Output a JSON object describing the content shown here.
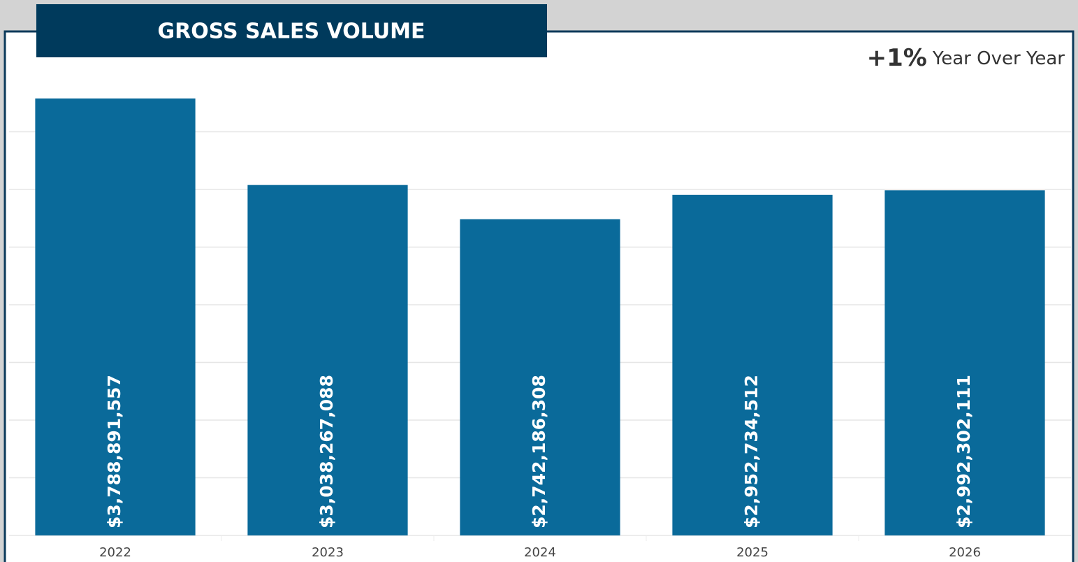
{
  "chart_data": {
    "type": "bar",
    "title": "GROSS SALES VOLUME",
    "annotation": {
      "change": "+1%",
      "label": "Year Over Year"
    },
    "categories": [
      "2022",
      "2023",
      "2024",
      "2025",
      "2026"
    ],
    "values": [
      3788891557,
      3038267088,
      2742186308,
      2952734512,
      2992302111
    ],
    "value_labels": [
      "$3,788,891,557",
      "$3,038,267,088",
      "$2,742,186,308",
      "$2,952,734,512",
      "$2,992,302,111"
    ],
    "color": "#0a6a9a",
    "ylim": [
      0,
      4000000000
    ],
    "yticks": [
      0,
      500000000,
      1000000000,
      1500000000,
      2000000000,
      2500000000,
      3000000000,
      3500000000
    ],
    "grid": true
  }
}
